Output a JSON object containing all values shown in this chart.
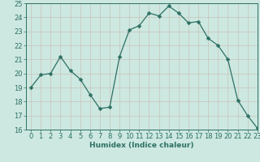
{
  "x": [
    0,
    1,
    2,
    3,
    4,
    5,
    6,
    7,
    8,
    9,
    10,
    11,
    12,
    13,
    14,
    15,
    16,
    17,
    18,
    19,
    20,
    21,
    22,
    23
  ],
  "y": [
    19,
    19.9,
    20,
    21.2,
    20.2,
    19.6,
    18.5,
    17.5,
    17.6,
    21.2,
    23.1,
    23.4,
    24.3,
    24.1,
    24.8,
    24.3,
    23.6,
    23.7,
    22.5,
    22.0,
    21.0,
    18.1,
    17.0,
    16.1
  ],
  "line_color": "#2e7063",
  "marker": "D",
  "markersize": 2.5,
  "bg_color": "#cce8e0",
  "grid_color_major": "#b8d4cc",
  "grid_color_minor": "#d4e8e2",
  "axis_color": "#2e7063",
  "tick_label_color": "#2e7063",
  "xlabel": "Humidex (Indice chaleur)",
  "ylim": [
    16,
    25
  ],
  "xlim": [
    -0.5,
    23
  ],
  "yticks": [
    16,
    17,
    18,
    19,
    20,
    21,
    22,
    23,
    24,
    25
  ],
  "xticks": [
    0,
    1,
    2,
    3,
    4,
    5,
    6,
    7,
    8,
    9,
    10,
    11,
    12,
    13,
    14,
    15,
    16,
    17,
    18,
    19,
    20,
    21,
    22,
    23
  ],
  "xlabel_fontsize": 6.5,
  "tick_fontsize": 6
}
